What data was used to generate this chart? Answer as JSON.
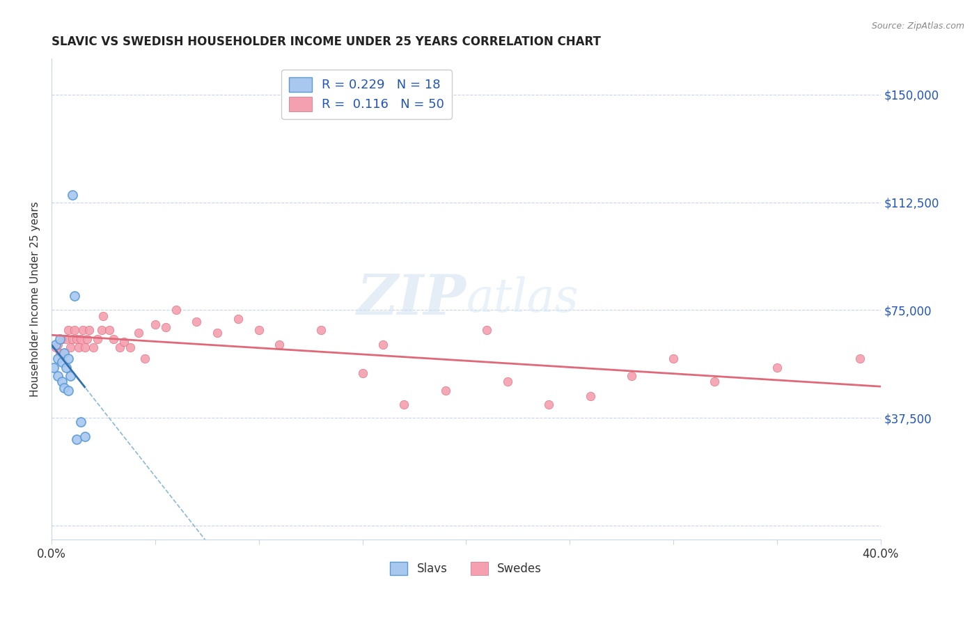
{
  "title": "SLAVIC VS SWEDISH HOUSEHOLDER INCOME UNDER 25 YEARS CORRELATION CHART",
  "source": "Source: ZipAtlas.com",
  "ylabel": "Householder Income Under 25 years",
  "xlim": [
    0.0,
    0.4
  ],
  "ylim": [
    -5000,
    162500
  ],
  "yticks": [
    0,
    37500,
    75000,
    112500,
    150000
  ],
  "ytick_labels": [
    "",
    "$37,500",
    "$75,000",
    "$112,500",
    "$150,000"
  ],
  "xticks": [
    0.0,
    0.05,
    0.1,
    0.15,
    0.2,
    0.25,
    0.3,
    0.35,
    0.4
  ],
  "slavs_color": "#a8c8f0",
  "slavs_edge": "#5b9bd5",
  "swedes_color": "#f4a0b0",
  "swedes_edge": "#e06878",
  "slavs_line_color": "#3070b0",
  "slavs_line_dash_color": "#8ab8d8",
  "swedes_line_color": "#e06878",
  "slavs_R": 0.229,
  "slavs_N": 18,
  "swedes_R": 0.116,
  "swedes_N": 50,
  "watermark_zip": "ZIP",
  "watermark_atlas": "atlas",
  "background_color": "#ffffff",
  "grid_color": "#c8d4e8",
  "title_color": "#222222",
  "source_color": "#888888",
  "axis_label_color": "#333333",
  "tick_label_color": "#2255bb",
  "legend_text_color": "#2255bb",
  "slavs_x": [
    0.001,
    0.002,
    0.003,
    0.003,
    0.004,
    0.005,
    0.005,
    0.006,
    0.006,
    0.007,
    0.008,
    0.008,
    0.009,
    0.01,
    0.011,
    0.012,
    0.014,
    0.016
  ],
  "slavs_y": [
    55000,
    63000,
    58000,
    52000,
    65000,
    57000,
    50000,
    60000,
    48000,
    55000,
    58000,
    47000,
    52000,
    115000,
    80000,
    30000,
    36000,
    31000
  ],
  "swedes_x": [
    0.002,
    0.003,
    0.004,
    0.005,
    0.006,
    0.007,
    0.008,
    0.009,
    0.01,
    0.011,
    0.012,
    0.013,
    0.014,
    0.015,
    0.016,
    0.017,
    0.018,
    0.02,
    0.022,
    0.024,
    0.025,
    0.028,
    0.03,
    0.033,
    0.035,
    0.038,
    0.042,
    0.045,
    0.05,
    0.055,
    0.06,
    0.07,
    0.08,
    0.09,
    0.1,
    0.11,
    0.13,
    0.15,
    0.16,
    0.17,
    0.19,
    0.21,
    0.22,
    0.24,
    0.26,
    0.28,
    0.3,
    0.32,
    0.35,
    0.39
  ],
  "swedes_y": [
    62000,
    63000,
    60000,
    65000,
    60000,
    65000,
    68000,
    62000,
    65000,
    68000,
    65000,
    62000,
    65000,
    68000,
    62000,
    65000,
    68000,
    62000,
    65000,
    68000,
    73000,
    68000,
    65000,
    62000,
    64000,
    62000,
    67000,
    58000,
    70000,
    69000,
    75000,
    71000,
    67000,
    72000,
    68000,
    63000,
    68000,
    53000,
    63000,
    42000,
    47000,
    68000,
    50000,
    42000,
    45000,
    52000,
    58000,
    50000,
    55000,
    58000
  ]
}
